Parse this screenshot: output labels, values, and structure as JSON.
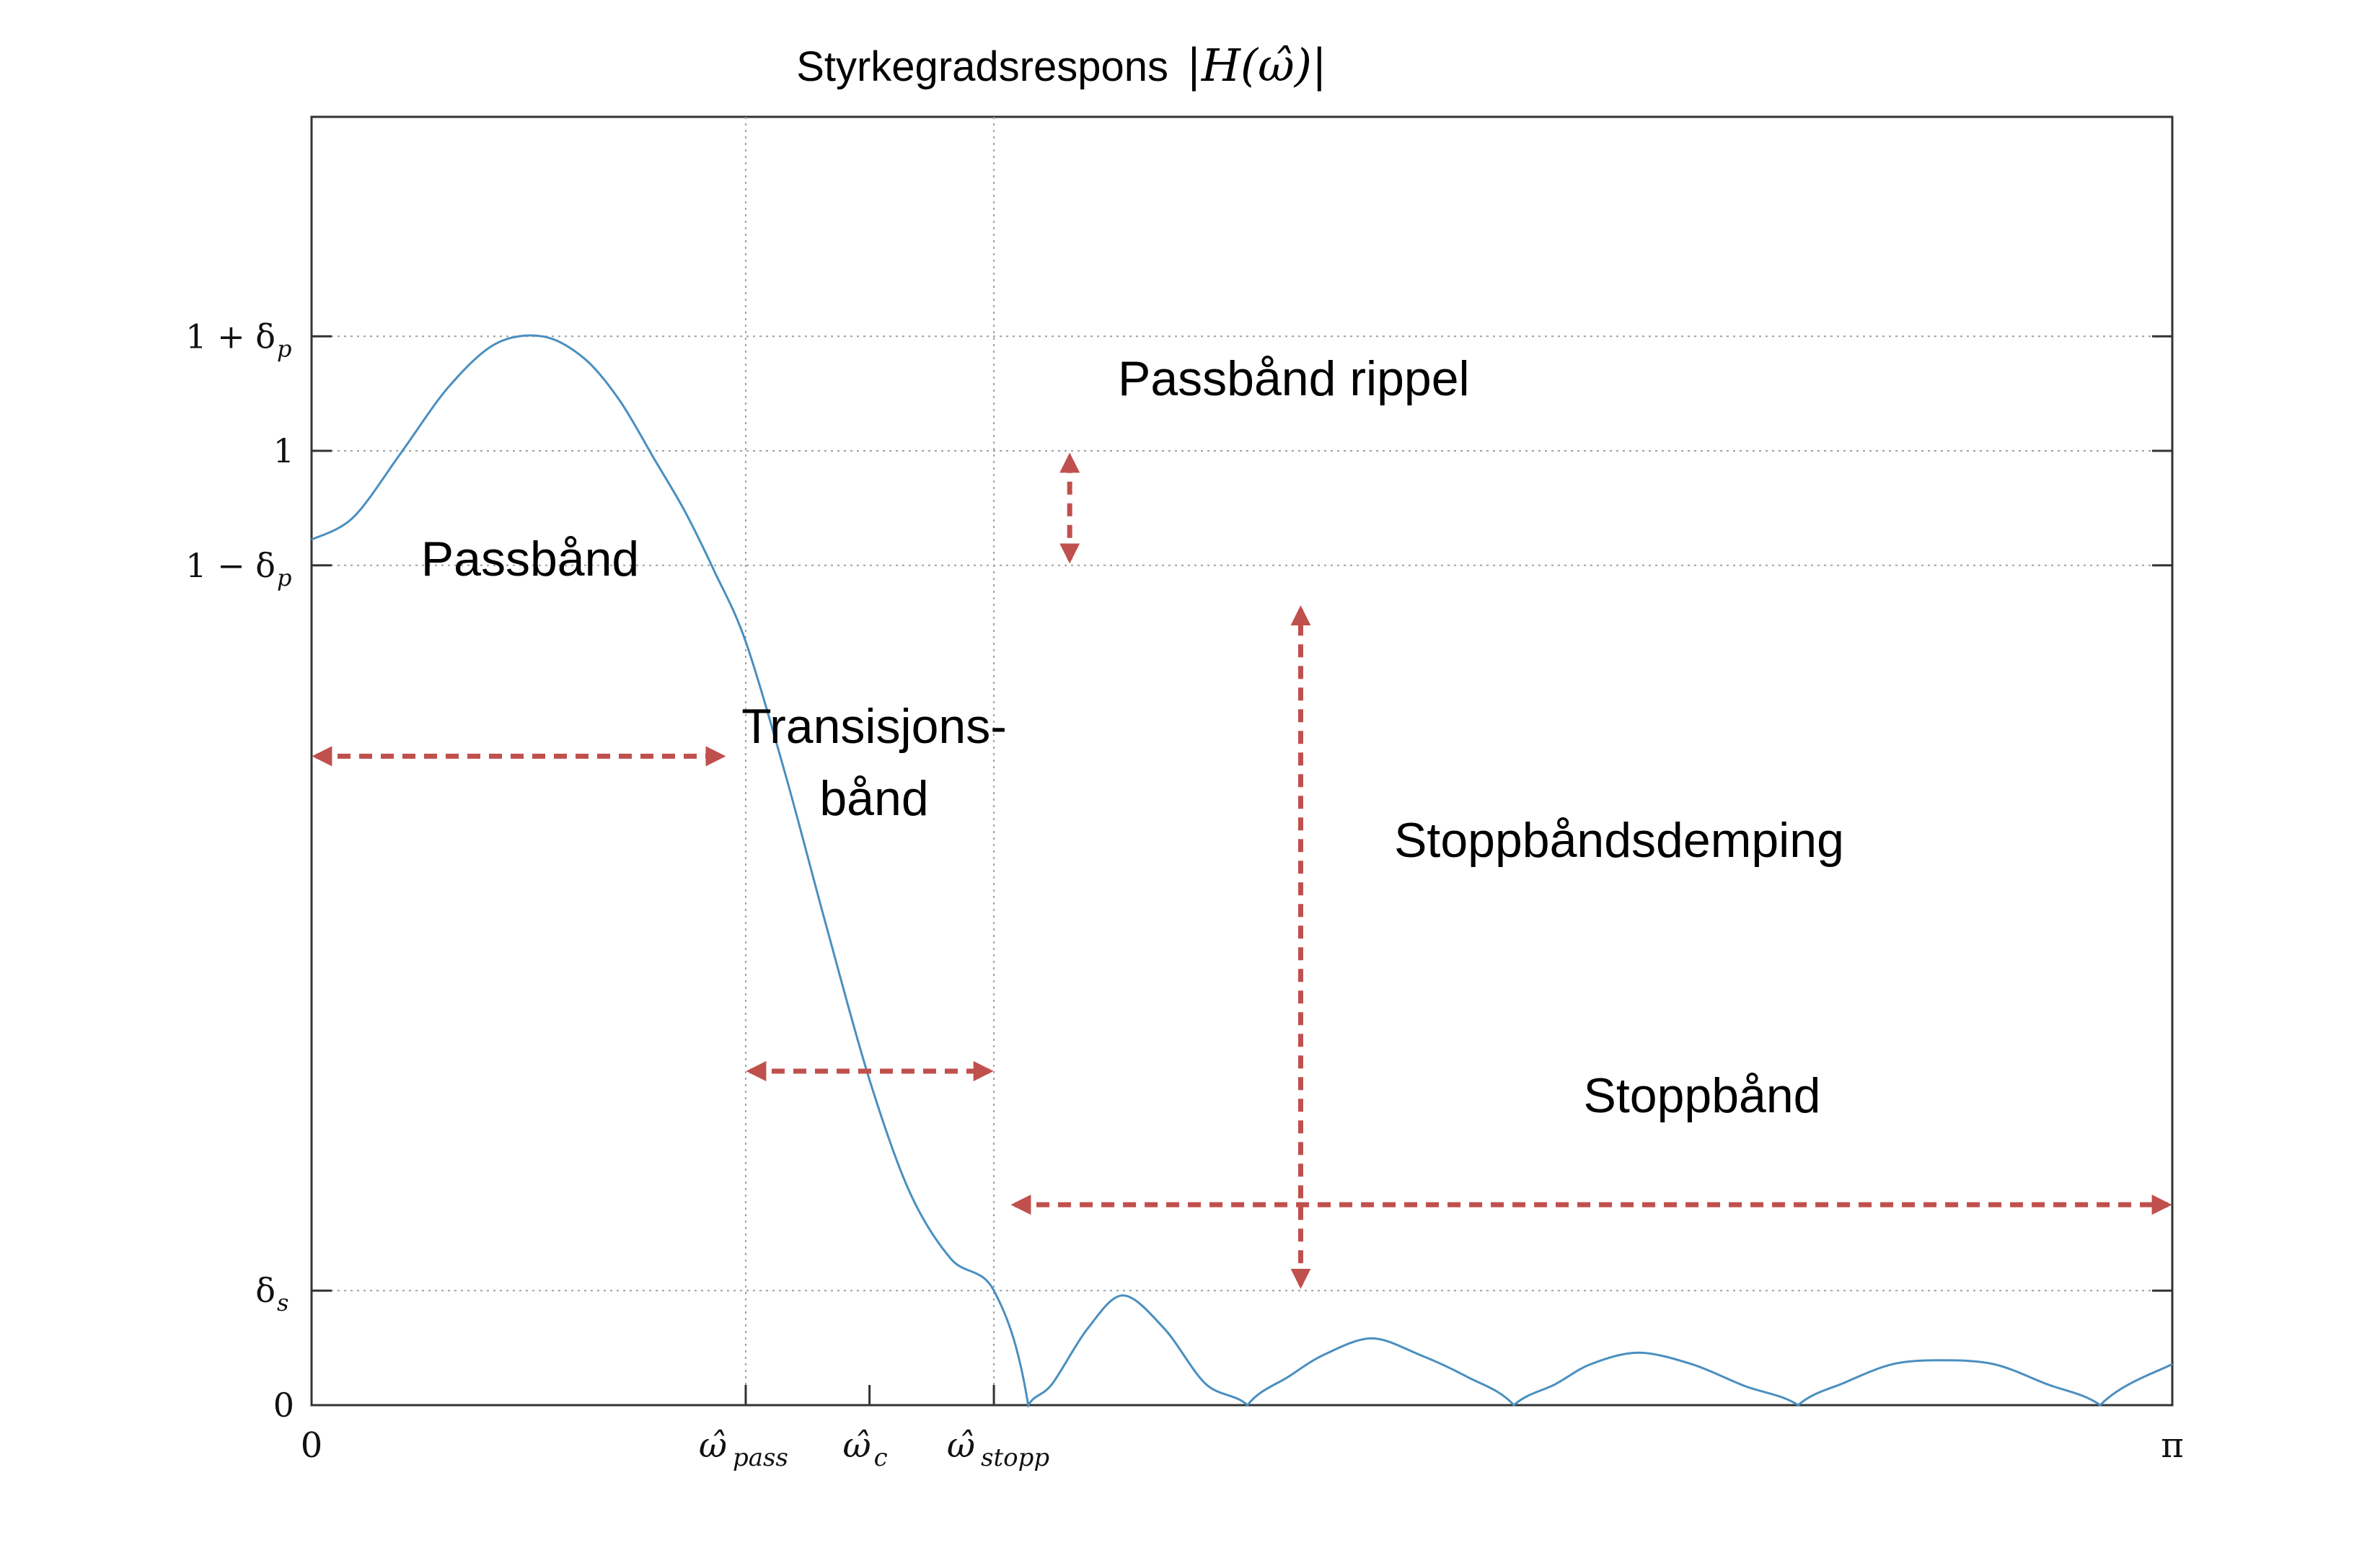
{
  "chart_data": {
    "type": "line",
    "title": "Styrkegradsrespons",
    "title_math": "|H(ω̂)|",
    "xlabel": "",
    "ylabel": "",
    "grid": "dotted at tick positions",
    "colors": {
      "curve": "#4a8fc0",
      "annotation": "#c0504d",
      "grid": "#9aa0a6",
      "axes": "#000000"
    },
    "xlim": [
      0,
      3.14159
    ],
    "ylim": [
      0,
      1.35
    ],
    "x_ticks": [
      {
        "value": 0,
        "label": "0"
      },
      {
        "value": 0.733,
        "label": "ω̂",
        "sub": "pass"
      },
      {
        "value": 0.942,
        "label": "ω̂",
        "sub": "c"
      },
      {
        "value": 1.152,
        "label": "ω̂",
        "sub": "stopp"
      },
      {
        "value": 3.14159,
        "label": "π"
      }
    ],
    "y_ticks": [
      {
        "value": 0,
        "label": "0"
      },
      {
        "value": 0.12,
        "label": "δ",
        "sub": "s"
      },
      {
        "value": 0.88,
        "label": "1 − δ",
        "sub": "p"
      },
      {
        "value": 1.0,
        "label": "1"
      },
      {
        "value": 1.12,
        "label": "1 + δ",
        "sub": "p"
      }
    ],
    "series": [
      {
        "x": [
          0,
          0.07,
          0.15,
          0.23,
          0.31,
          0.39,
          0.46,
          0.52,
          0.58,
          0.63,
          0.68,
          0.733,
          0.8,
          0.87,
          0.942,
          1.01,
          1.08,
          1.152,
          1.21,
          1.25,
          1.31,
          1.37,
          1.44,
          1.51,
          1.58,
          1.65,
          1.71,
          1.79,
          1.87,
          1.95,
          2.03,
          2.1,
          2.16,
          2.24,
          2.33,
          2.42,
          2.51,
          2.59,
          2.67,
          2.75,
          2.84,
          2.93,
          3.02,
          3.14159
        ],
        "y": [
          0.907,
          0.93,
          0.997,
          1.066,
          1.112,
          1.12,
          1.097,
          1.053,
          0.99,
          0.937,
          0.874,
          0.8,
          0.661,
          0.5,
          0.341,
          0.223,
          0.153,
          0.12,
          0.0,
          0.022,
          0.08,
          0.115,
          0.08,
          0.022,
          0.0,
          0.03,
          0.053,
          0.07,
          0.053,
          0.03,
          0.0,
          0.022,
          0.043,
          0.055,
          0.043,
          0.02,
          0.0,
          0.024,
          0.043,
          0.047,
          0.043,
          0.022,
          0.0,
          0.043
        ]
      }
    ],
    "annotations": [
      {
        "text": "Passbånd",
        "type": "horizontal-arrow",
        "from_x": 0,
        "to_x": 0.7,
        "at_y": 0.68
      },
      {
        "text": [
          "Transisjons-",
          "bånd"
        ],
        "type": "horizontal-arrow",
        "from_x": 0.733,
        "to_x": 1.152,
        "at_y": 0.35
      },
      {
        "text": "Passbånd rippel",
        "type": "vertical-arrow",
        "at_x": 1.28,
        "from_y": 0.88,
        "to_y": 1.0
      },
      {
        "text": "Stoppbåndsdemping",
        "type": "vertical-arrow",
        "at_x": 1.67,
        "from_y": 0.12,
        "to_y": 0.84
      },
      {
        "text": "Stoppbånd",
        "type": "horizontal-arrow",
        "from_x": 1.18,
        "to_x": 3.14159,
        "at_y": 0.21
      }
    ]
  }
}
